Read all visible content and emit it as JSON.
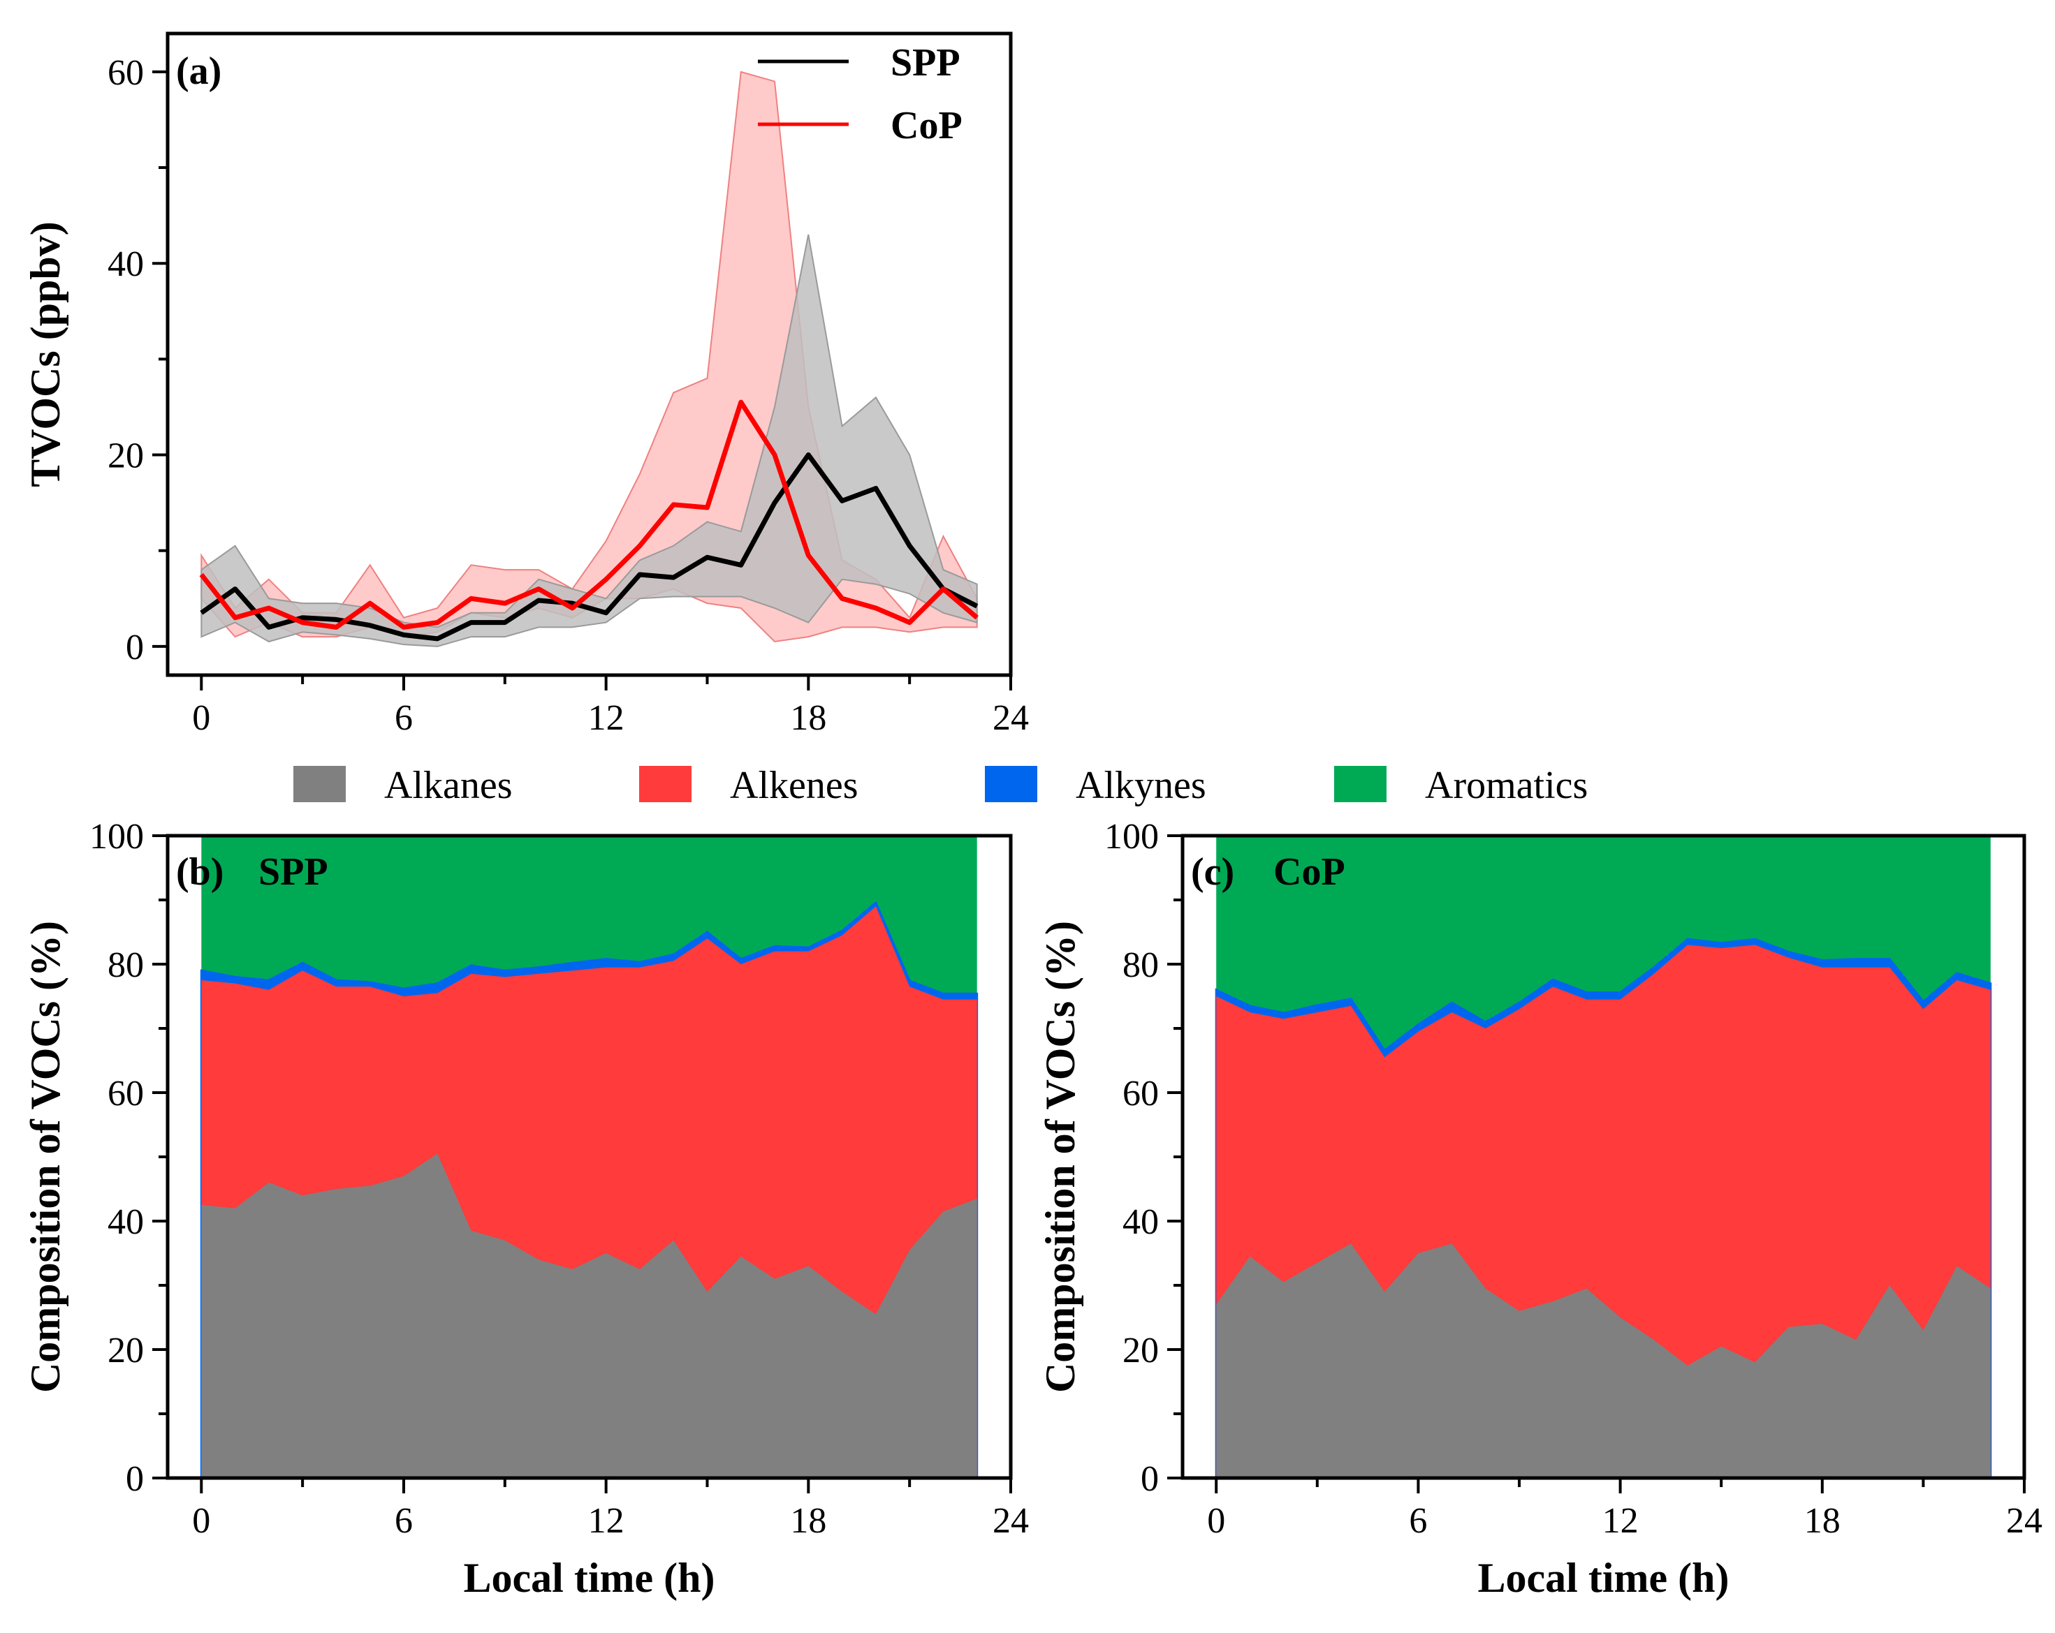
{
  "colors": {
    "spp_line": "#000000",
    "cop_line": "#ff0000",
    "spp_band": "#bfbfbf",
    "cop_band": "#ffb3b3",
    "alkanes": "#808080",
    "alkenes": "#ff3b3b",
    "alkynes": "#0066ee",
    "aromatics": "#00aa55"
  },
  "legend_top": {
    "items": [
      {
        "label": "Alkanes",
        "color": "#808080"
      },
      {
        "label": "Alkenes",
        "color": "#ff3b3b"
      },
      {
        "label": "Alkynes",
        "color": "#0066ee"
      },
      {
        "label": "Aromatics",
        "color": "#00aa55"
      }
    ]
  },
  "chart_data": [
    {
      "type": "line",
      "panel_label": "(a)",
      "ylabel": "TVOCs (ppbv)",
      "xlabel": "",
      "xlim": [
        -1,
        24
      ],
      "ylim": [
        -3,
        64
      ],
      "xticks": [
        0,
        6,
        12,
        18,
        24
      ],
      "yticks": [
        0,
        20,
        40,
        60
      ],
      "legend_placement": "top-right",
      "x": [
        0,
        1,
        2,
        3,
        4,
        5,
        6,
        7,
        8,
        9,
        10,
        11,
        12,
        13,
        14,
        15,
        16,
        17,
        18,
        19,
        20,
        21,
        22,
        23
      ],
      "series": [
        {
          "name": "SPP",
          "values": [
            3.5,
            6,
            2,
            3,
            2.8,
            2.2,
            1.2,
            0.8,
            2.5,
            2.5,
            4.8,
            4.5,
            3.5,
            7.5,
            7.2,
            9.3,
            8.5,
            15,
            20,
            15.2,
            16.5,
            10.5,
            6,
            4.2
          ],
          "upper": [
            8,
            10.5,
            5,
            4.5,
            4.5,
            4,
            2.5,
            2,
            3.5,
            3.5,
            7,
            6,
            5,
            9,
            10.5,
            13,
            12,
            25,
            43,
            23,
            26,
            20,
            8,
            6.5
          ],
          "lower": [
            1,
            2.5,
            0.5,
            1.5,
            1.2,
            0.8,
            0.2,
            0,
            1,
            1,
            2,
            2,
            2.5,
            5,
            5.2,
            5.2,
            5.2,
            4,
            2.5,
            7,
            6.5,
            5.5,
            3.5,
            2.5
          ]
        },
        {
          "name": "CoP",
          "values": [
            7.5,
            3,
            4,
            2.5,
            2,
            4.5,
            2,
            2.5,
            5,
            4.5,
            6,
            4,
            7,
            10.5,
            14.8,
            14.5,
            25.5,
            20,
            9.5,
            5,
            4,
            2.5,
            6,
            3
          ],
          "upper": [
            9.5,
            4,
            7,
            3.5,
            3.5,
            8.5,
            3,
            4,
            8.5,
            8,
            8,
            6,
            11,
            18,
            26.5,
            28,
            60,
            59,
            25,
            9,
            7,
            3,
            11.5,
            5
          ],
          "lower": [
            5,
            1,
            2.5,
            1,
            1,
            2,
            1,
            1.5,
            3.5,
            3,
            4,
            3,
            5,
            5,
            6,
            4.5,
            4,
            0.5,
            1,
            2,
            2,
            1.5,
            2,
            2
          ]
        }
      ]
    },
    {
      "type": "area",
      "panel_label": "(b)",
      "panel_title": "SPP",
      "ylabel": "Composition of VOCs (%)",
      "xlabel": "Local time (h)",
      "xlim": [
        -1,
        24
      ],
      "ylim": [
        0,
        100
      ],
      "xticks": [
        0,
        6,
        12,
        18,
        24
      ],
      "yticks": [
        0,
        20,
        40,
        60,
        80,
        100
      ],
      "stacking": "cumulative",
      "x": [
        0,
        1,
        2,
        3,
        4,
        5,
        6,
        7,
        8,
        9,
        10,
        11,
        12,
        13,
        14,
        15,
        16,
        17,
        18,
        19,
        20,
        21,
        22,
        23
      ],
      "series": [
        {
          "name": "Alkanes",
          "cumulative": [
            42.5,
            42,
            46,
            44,
            45,
            45.5,
            47,
            50.5,
            38.5,
            37,
            34,
            32.5,
            35,
            32.5,
            37,
            29,
            34.5,
            31,
            33,
            29,
            25.5,
            35.5,
            41.5,
            43.5
          ]
        },
        {
          "name": "Alkenes",
          "cumulative": [
            77.5,
            77,
            76,
            79,
            76.5,
            76.5,
            75,
            75.5,
            78.5,
            78,
            78.5,
            79,
            79.5,
            79.5,
            80.5,
            84,
            80,
            82,
            82,
            84.5,
            89,
            76.5,
            74.5,
            74.5
          ]
        },
        {
          "name": "Alkynes",
          "cumulative": [
            79,
            78,
            77.5,
            80.2,
            77.5,
            77.2,
            76.2,
            77,
            79.8,
            79,
            79.5,
            80.2,
            80.8,
            80.3,
            81.5,
            85,
            80.8,
            82.8,
            82.6,
            85.2,
            89.6,
            77.4,
            75.4,
            75.4
          ]
        },
        {
          "name": "Aromatics",
          "cumulative": [
            100,
            100,
            100,
            100,
            100,
            100,
            100,
            100,
            100,
            100,
            100,
            100,
            100,
            100,
            100,
            100,
            100,
            100,
            100,
            100,
            100,
            100,
            100,
            100
          ]
        }
      ]
    },
    {
      "type": "area",
      "panel_label": "(c)",
      "panel_title": "CoP",
      "ylabel": "Composition of VOCs (%)",
      "xlabel": "Local time (h)",
      "xlim": [
        -1,
        24
      ],
      "ylim": [
        0,
        100
      ],
      "xticks": [
        0,
        6,
        12,
        18,
        24
      ],
      "yticks": [
        0,
        20,
        40,
        60,
        80,
        100
      ],
      "stacking": "cumulative",
      "x": [
        0,
        1,
        2,
        3,
        4,
        5,
        6,
        7,
        8,
        9,
        10,
        11,
        12,
        13,
        14,
        15,
        16,
        17,
        18,
        19,
        20,
        21,
        22,
        23
      ],
      "series": [
        {
          "name": "Alkanes",
          "cumulative": [
            27,
            34.5,
            30.5,
            33.5,
            36.5,
            29,
            35,
            36.5,
            29.5,
            26,
            27.5,
            29.5,
            25,
            21.5,
            17.5,
            20.5,
            18,
            23.5,
            24,
            21.5,
            30,
            23,
            33,
            29.5
          ]
        },
        {
          "name": "Alkenes",
          "cumulative": [
            75,
            72.5,
            71.5,
            72.5,
            73.5,
            65.5,
            69.5,
            72.5,
            70,
            73,
            76.5,
            74.5,
            74.5,
            78.5,
            83,
            82.5,
            83,
            81,
            79.5,
            79.5,
            79.5,
            73,
            77.5,
            76
          ]
        },
        {
          "name": "Alkynes",
          "cumulative": [
            76,
            73.5,
            72.4,
            73.6,
            74.6,
            66.6,
            70.6,
            74,
            71,
            74,
            77.6,
            75.6,
            75.6,
            79.5,
            83.9,
            83.3,
            83.9,
            81.9,
            80.6,
            80.8,
            80.8,
            74.2,
            78.6,
            77
          ]
        },
        {
          "name": "Aromatics",
          "cumulative": [
            100,
            100,
            100,
            100,
            100,
            100,
            100,
            100,
            100,
            100,
            100,
            100,
            100,
            100,
            100,
            100,
            100,
            100,
            100,
            100,
            100,
            100,
            100,
            100
          ]
        }
      ]
    }
  ]
}
